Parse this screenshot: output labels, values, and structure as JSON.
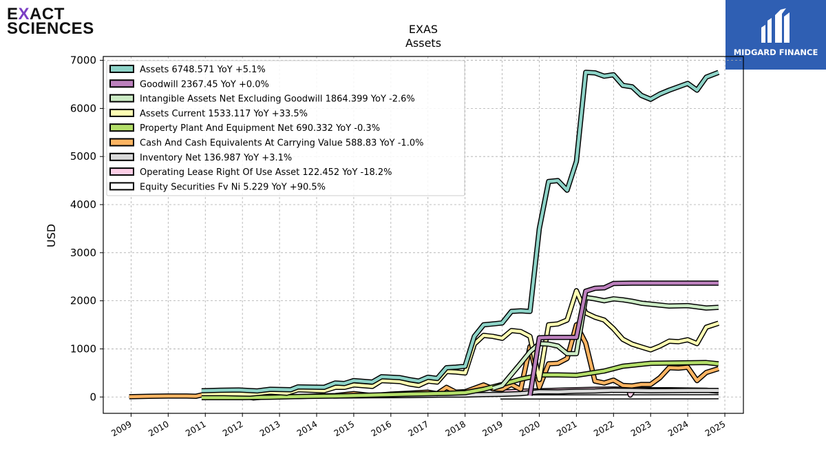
{
  "brand": {
    "line1_a": "E",
    "line1_x": "X",
    "line1_b": "ACT",
    "line2": "SCIENCES"
  },
  "badge": {
    "text": "MIDGARD FINANCE",
    "color": "#2f5fb3"
  },
  "chart_data": {
    "type": "line",
    "title": "EXAS",
    "subtitle": "Assets",
    "ylabel": "USD",
    "xlabel": "",
    "ylim": [
      -340,
      7080
    ],
    "xlim": [
      2008.25,
      2025.5
    ],
    "yticks": [
      0,
      1000,
      2000,
      3000,
      4000,
      5000,
      6000,
      7000
    ],
    "xticks": [
      "2009",
      "2010",
      "2011",
      "2012",
      "2013",
      "2014",
      "2015",
      "2016",
      "2017",
      "2018",
      "2019",
      "2020",
      "2021",
      "2022",
      "2023",
      "2024",
      "2025"
    ],
    "grid": true,
    "legend_position": "top-left",
    "series": [
      {
        "name": "Assets",
        "legend": "Assets  6748.571 YoY +5.1%",
        "color": "#8dd3c7",
        "points": [
          [
            2010.9,
            130
          ],
          [
            2011.4,
            140
          ],
          [
            2011.9,
            145
          ],
          [
            2012.4,
            125
          ],
          [
            2012.75,
            160
          ],
          [
            2013.3,
            150
          ],
          [
            2013.5,
            210
          ],
          [
            2014.2,
            200
          ],
          [
            2014.5,
            290
          ],
          [
            2014.75,
            280
          ],
          [
            2015,
            340
          ],
          [
            2015.5,
            310
          ],
          [
            2015.75,
            420
          ],
          [
            2016.25,
            400
          ],
          [
            2016.5,
            360
          ],
          [
            2016.75,
            330
          ],
          [
            2017,
            410
          ],
          [
            2017.25,
            385
          ],
          [
            2017.5,
            610
          ],
          [
            2017.75,
            620
          ],
          [
            2018,
            640
          ],
          [
            2018.25,
            1260
          ],
          [
            2018.5,
            1500
          ],
          [
            2018.75,
            1520
          ],
          [
            2019,
            1540
          ],
          [
            2019.25,
            1780
          ],
          [
            2019.5,
            1790
          ],
          [
            2019.75,
            1780
          ],
          [
            2020,
            3500
          ],
          [
            2020.25,
            4480
          ],
          [
            2020.5,
            4500
          ],
          [
            2020.75,
            4300
          ],
          [
            2021,
            4900
          ],
          [
            2021.25,
            6750
          ],
          [
            2021.5,
            6740
          ],
          [
            2021.75,
            6670
          ],
          [
            2022,
            6700
          ],
          [
            2022.25,
            6480
          ],
          [
            2022.5,
            6450
          ],
          [
            2022.75,
            6270
          ],
          [
            2023,
            6190
          ],
          [
            2023.25,
            6300
          ],
          [
            2023.5,
            6380
          ],
          [
            2023.75,
            6450
          ],
          [
            2024,
            6520
          ],
          [
            2024.25,
            6380
          ],
          [
            2024.5,
            6650
          ],
          [
            2024.83,
            6749
          ]
        ]
      },
      {
        "name": "Goodwill",
        "legend": "Goodwill  2367.45 YoY +0.0%",
        "color": "#bc80bd",
        "points": [
          [
            2019.75,
            30
          ],
          [
            2020,
            1230
          ],
          [
            2020.25,
            1240
          ],
          [
            2020.5,
            1240
          ],
          [
            2020.75,
            1240
          ],
          [
            2021,
            1240
          ],
          [
            2021.25,
            2200
          ],
          [
            2021.5,
            2260
          ],
          [
            2021.75,
            2270
          ],
          [
            2022,
            2360
          ],
          [
            2022.5,
            2367
          ],
          [
            2023,
            2367
          ],
          [
            2023.5,
            2367
          ],
          [
            2024,
            2367
          ],
          [
            2024.83,
            2367
          ]
        ]
      },
      {
        "name": "Intangible Assets Net Excluding Goodwill",
        "legend": "Intangible Assets Net Excluding Goodwill  1864.399 YoY -2.6%",
        "color": "#ccebc5",
        "points": [
          [
            2018.75,
            180
          ],
          [
            2019,
            240
          ],
          [
            2019.5,
            700
          ],
          [
            2019.75,
            940
          ],
          [
            2020,
            1110
          ],
          [
            2020.25,
            1100
          ],
          [
            2020.5,
            1060
          ],
          [
            2020.75,
            900
          ],
          [
            2021,
            900
          ],
          [
            2021.25,
            2070
          ],
          [
            2021.5,
            2040
          ],
          [
            2021.75,
            2000
          ],
          [
            2022,
            2040
          ],
          [
            2022.25,
            2020
          ],
          [
            2022.5,
            1990
          ],
          [
            2022.75,
            1950
          ],
          [
            2023,
            1930
          ],
          [
            2023.5,
            1890
          ],
          [
            2024,
            1900
          ],
          [
            2024.5,
            1850
          ],
          [
            2024.83,
            1864
          ]
        ]
      },
      {
        "name": "Assets Current",
        "legend": "Assets Current  1533.117 YoY +33.5%",
        "color": "#ffffb3",
        "points": [
          [
            2010.9,
            70
          ],
          [
            2011.5,
            70
          ],
          [
            2012.2,
            60
          ],
          [
            2012.75,
            100
          ],
          [
            2013.2,
            80
          ],
          [
            2013.5,
            150
          ],
          [
            2014.2,
            130
          ],
          [
            2014.5,
            200
          ],
          [
            2014.75,
            200
          ],
          [
            2015,
            250
          ],
          [
            2015.5,
            220
          ],
          [
            2015.75,
            340
          ],
          [
            2016.25,
            320
          ],
          [
            2016.5,
            270
          ],
          [
            2016.75,
            240
          ],
          [
            2017,
            330
          ],
          [
            2017.25,
            310
          ],
          [
            2017.5,
            530
          ],
          [
            2017.75,
            520
          ],
          [
            2018,
            500
          ],
          [
            2018.25,
            1100
          ],
          [
            2018.5,
            1280
          ],
          [
            2018.75,
            1260
          ],
          [
            2019,
            1220
          ],
          [
            2019.25,
            1380
          ],
          [
            2019.5,
            1360
          ],
          [
            2019.75,
            1260
          ],
          [
            2020,
            360
          ],
          [
            2020.25,
            1500
          ],
          [
            2020.5,
            1520
          ],
          [
            2020.75,
            1600
          ],
          [
            2021,
            2210
          ],
          [
            2021.25,
            1750
          ],
          [
            2021.5,
            1660
          ],
          [
            2021.75,
            1600
          ],
          [
            2022,
            1420
          ],
          [
            2022.25,
            1200
          ],
          [
            2022.5,
            1100
          ],
          [
            2022.75,
            1040
          ],
          [
            2023,
            980
          ],
          [
            2023.25,
            1060
          ],
          [
            2023.5,
            1160
          ],
          [
            2023.75,
            1150
          ],
          [
            2024,
            1190
          ],
          [
            2024.25,
            1110
          ],
          [
            2024.5,
            1450
          ],
          [
            2024.83,
            1533
          ]
        ]
      },
      {
        "name": "Property Plant And Equipment Net",
        "legend": "Property Plant And Equipment Net  690.332 YoY -0.3%",
        "color": "#b3de69",
        "points": [
          [
            2010.9,
            -15
          ],
          [
            2011.5,
            -15
          ],
          [
            2012,
            -15
          ],
          [
            2012.75,
            -5
          ],
          [
            2013.5,
            10
          ],
          [
            2014.5,
            20
          ],
          [
            2015.5,
            40
          ],
          [
            2016.5,
            60
          ],
          [
            2017.5,
            75
          ],
          [
            2018,
            90
          ],
          [
            2018.5,
            160
          ],
          [
            2019,
            260
          ],
          [
            2019.5,
            370
          ],
          [
            2019.75,
            410
          ],
          [
            2020,
            460
          ],
          [
            2020.5,
            460
          ],
          [
            2021,
            450
          ],
          [
            2021.25,
            480
          ],
          [
            2021.75,
            540
          ],
          [
            2022,
            590
          ],
          [
            2022.25,
            640
          ],
          [
            2022.75,
            680
          ],
          [
            2023,
            700
          ],
          [
            2023.5,
            705
          ],
          [
            2024,
            712
          ],
          [
            2024.5,
            715
          ],
          [
            2024.83,
            690
          ]
        ]
      },
      {
        "name": "Cash And Cash Equivalents At Carrying Value",
        "legend": "Cash And Cash Equivalents At Carrying Value  588.83 YoY -1.0%",
        "color": "#fdb462",
        "points": [
          [
            2008.95,
            5
          ],
          [
            2009.5,
            15
          ],
          [
            2010,
            20
          ],
          [
            2010.5,
            20
          ],
          [
            2010.75,
            15
          ],
          [
            2011,
            60
          ],
          [
            2011.3,
            50
          ],
          [
            2011.75,
            -10
          ],
          [
            2012,
            20
          ],
          [
            2012.3,
            -20
          ],
          [
            2012.75,
            10
          ],
          [
            2013.5,
            10
          ],
          [
            2014,
            20
          ],
          [
            2014.5,
            30
          ],
          [
            2015,
            70
          ],
          [
            2015.5,
            30
          ],
          [
            2016,
            60
          ],
          [
            2016.5,
            80
          ],
          [
            2017,
            100
          ],
          [
            2017.25,
            70
          ],
          [
            2017.5,
            200
          ],
          [
            2017.75,
            100
          ],
          [
            2018,
            110
          ],
          [
            2018.5,
            250
          ],
          [
            2018.75,
            170
          ],
          [
            2019,
            160
          ],
          [
            2019.25,
            260
          ],
          [
            2019.5,
            160
          ],
          [
            2019.75,
            1050
          ],
          [
            2020,
            200
          ],
          [
            2020.25,
            690
          ],
          [
            2020.5,
            700
          ],
          [
            2020.75,
            800
          ],
          [
            2021,
            1500
          ],
          [
            2021.25,
            1120
          ],
          [
            2021.5,
            330
          ],
          [
            2021.75,
            290
          ],
          [
            2022,
            350
          ],
          [
            2022.25,
            240
          ],
          [
            2022.5,
            230
          ],
          [
            2022.75,
            260
          ],
          [
            2023,
            260
          ],
          [
            2023.25,
            400
          ],
          [
            2023.5,
            610
          ],
          [
            2023.75,
            600
          ],
          [
            2024,
            620
          ],
          [
            2024.25,
            340
          ],
          [
            2024.5,
            510
          ],
          [
            2024.83,
            589
          ]
        ]
      },
      {
        "name": "Inventory Net",
        "legend": "Inventory Net  136.987 YoY +3.1%",
        "color": "#d9d9d9",
        "points": [
          [
            2014.45,
            20
          ],
          [
            2014.5,
            20
          ],
          [
            2015.5,
            25
          ],
          [
            2016.5,
            30
          ],
          [
            2017.5,
            40
          ],
          [
            2018,
            40
          ],
          [
            2018.5,
            50
          ],
          [
            2019,
            55
          ],
          [
            2019.5,
            70
          ],
          [
            2020,
            110
          ],
          [
            2020.5,
            105
          ],
          [
            2021,
            120
          ],
          [
            2021.5,
            125
          ],
          [
            2022,
            140
          ],
          [
            2022.5,
            135
          ],
          [
            2023,
            130
          ],
          [
            2023.5,
            133
          ],
          [
            2024,
            135
          ],
          [
            2024.83,
            137
          ]
        ]
      },
      {
        "name": "Operating Lease Right Of Use Asset",
        "legend": "Operating Lease Right Of Use Asset  122.452 YoY -18.2%",
        "color": "#fccde5",
        "points": [
          [
            2018.95,
            100
          ],
          [
            2019.5,
            120
          ],
          [
            2020,
            130
          ],
          [
            2020.5,
            140
          ],
          [
            2021,
            150
          ],
          [
            2021.5,
            160
          ],
          [
            2022,
            165
          ],
          [
            2022.4,
            160
          ],
          [
            2022.45,
            40
          ],
          [
            2022.55,
            160
          ],
          [
            2023,
            150
          ],
          [
            2023.5,
            150
          ],
          [
            2024,
            145
          ],
          [
            2024.5,
            140
          ],
          [
            2024.83,
            122
          ]
        ]
      },
      {
        "name": "Equity Securities Fv Ni",
        "legend": "Equity Securities Fv Ni  5.229 YoY +90.5%",
        "color": "#ffffff",
        "points": [
          [
            2018.95,
            0
          ],
          [
            2019.5,
            0
          ],
          [
            2020.5,
            0
          ],
          [
            2021.5,
            2
          ],
          [
            2022.5,
            3
          ],
          [
            2023.5,
            4
          ],
          [
            2024.83,
            5
          ]
        ]
      }
    ]
  }
}
